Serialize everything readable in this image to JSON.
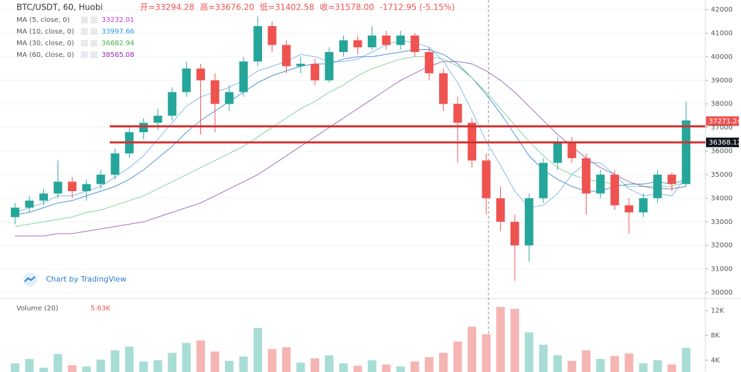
{
  "chart_data": {
    "type": "candlestick",
    "title": "BTC/USDT, 60, Huobi",
    "header_fields": [
      "开=33294.28",
      "高=33676.20",
      "低=31402.58",
      "收=31578.00",
      "-1712.95 (-5.15%)"
    ],
    "header_color": "#ef5350",
    "up_color": "#26a69a",
    "down_color": "#ef5350",
    "volume_up_color": "#a8ddd6",
    "volume_down_color": "#f5b5b3",
    "ohlc": [
      [
        33200,
        33800,
        32900,
        33600
      ],
      [
        33600,
        34100,
        33400,
        33900
      ],
      [
        33900,
        34400,
        33700,
        34200
      ],
      [
        34200,
        35600,
        34000,
        34700
      ],
      [
        34700,
        34900,
        34000,
        34300
      ],
      [
        34300,
        34800,
        33900,
        34600
      ],
      [
        34600,
        35200,
        34400,
        35000
      ],
      [
        35000,
        36100,
        34800,
        35900
      ],
      [
        35900,
        37000,
        35700,
        36800
      ],
      [
        36800,
        37400,
        36500,
        37200
      ],
      [
        37200,
        37800,
        36900,
        37500
      ],
      [
        37500,
        38700,
        37300,
        38500
      ],
      [
        38500,
        39800,
        38300,
        39500
      ],
      [
        39500,
        39700,
        36700,
        39000
      ],
      [
        39000,
        39300,
        36800,
        38000
      ],
      [
        38000,
        38800,
        37700,
        38500
      ],
      [
        38500,
        40000,
        38300,
        39800
      ],
      [
        39800,
        41700,
        39600,
        41300
      ],
      [
        41300,
        41500,
        40200,
        40500
      ],
      [
        40500,
        40700,
        39300,
        39600
      ],
      [
        39600,
        40000,
        39300,
        39700
      ],
      [
        39700,
        39900,
        38800,
        39000
      ],
      [
        39000,
        40400,
        38900,
        40200
      ],
      [
        40200,
        40900,
        40000,
        40700
      ],
      [
        40700,
        40900,
        40100,
        40400
      ],
      [
        40400,
        41300,
        40300,
        40900
      ],
      [
        40900,
        41100,
        40300,
        40500
      ],
      [
        40500,
        41100,
        40300,
        40900
      ],
      [
        40900,
        41000,
        40000,
        40200
      ],
      [
        40200,
        40400,
        39000,
        39300
      ],
      [
        39300,
        39500,
        37700,
        38000
      ],
      [
        38000,
        38300,
        35500,
        37200
      ],
      [
        37200,
        37400,
        35300,
        35600
      ],
      [
        35600,
        35900,
        33300,
        34000
      ],
      [
        34000,
        34500,
        32600,
        33000
      ],
      [
        33000,
        33300,
        30500,
        32000
      ],
      [
        32000,
        34200,
        31300,
        34000
      ],
      [
        34000,
        35700,
        33800,
        35500
      ],
      [
        35500,
        36600,
        35200,
        36400
      ],
      [
        36400,
        36600,
        35500,
        35700
      ],
      [
        35700,
        35900,
        33300,
        34200
      ],
      [
        34200,
        35200,
        34000,
        35000
      ],
      [
        35000,
        35200,
        33500,
        33700
      ],
      [
        33700,
        34000,
        32500,
        33400
      ],
      [
        33400,
        34200,
        33200,
        34000
      ],
      [
        34000,
        35200,
        33800,
        35000
      ],
      [
        35000,
        35100,
        34300,
        34600
      ],
      [
        34600,
        38100,
        34500,
        37300
      ]
    ],
    "series": [
      {
        "name": "MA (5, close, 0)",
        "legend_value": "33232.01",
        "color": "#c23bd4",
        "line_color": "#7fb8f0",
        "values": [
          33400,
          33600,
          33800,
          34100,
          34100,
          34300,
          34500,
          34900,
          35300,
          35800,
          36500,
          37200,
          37900,
          38300,
          38500,
          38700,
          39000,
          39400,
          39600,
          39800,
          40100,
          40000,
          39800,
          39800,
          39900,
          40200,
          40500,
          40700,
          40600,
          40400,
          39800,
          38900,
          37700,
          36400,
          35400,
          34300,
          33600,
          33700,
          34200,
          35000,
          35500,
          35500,
          35000,
          34400,
          34100,
          34200,
          34100,
          34900
        ]
      },
      {
        "name": "MA (10, close, 0)",
        "legend_value": "33997.66",
        "color": "#2196f3",
        "line_color": "#4a90d9",
        "values": [
          33300,
          33400,
          33600,
          33800,
          33900,
          34100,
          34300,
          34500,
          34800,
          35200,
          35700,
          36200,
          36800,
          37300,
          37700,
          38100,
          38500,
          38900,
          39200,
          39400,
          39600,
          39700,
          39700,
          39900,
          40000,
          40000,
          40100,
          40200,
          40300,
          40300,
          40100,
          39700,
          39100,
          38400,
          37600,
          36700,
          35800,
          35200,
          34800,
          34500,
          34300,
          34300,
          34500,
          34600,
          34600,
          34700,
          34600,
          34800
        ]
      },
      {
        "name": "MA (30, close, 0)",
        "legend_value": "36682.94",
        "color": "#43b04a",
        "line_color": "#7fd39a",
        "values": [
          32800,
          32900,
          33000,
          33100,
          33200,
          33400,
          33500,
          33700,
          33900,
          34100,
          34400,
          34700,
          35000,
          35300,
          35600,
          35900,
          36200,
          36600,
          37000,
          37400,
          37800,
          38100,
          38500,
          38800,
          39200,
          39500,
          39700,
          39900,
          40000,
          40000,
          39900,
          39600,
          39100,
          38500,
          37800,
          37100,
          36400,
          35800,
          35300,
          35000,
          34800,
          34700,
          34600,
          34500,
          34500,
          34500,
          34500,
          34700
        ]
      },
      {
        "name": "MA (60, close, 0)",
        "legend_value": "38565.08",
        "color": "#9c27b0",
        "line_color": "#9b6fb5",
        "values": [
          32400,
          32400,
          32400,
          32500,
          32500,
          32600,
          32700,
          32800,
          32900,
          33000,
          33200,
          33400,
          33600,
          33800,
          34100,
          34400,
          34700,
          35000,
          35400,
          35800,
          36200,
          36600,
          37000,
          37400,
          37800,
          38200,
          38600,
          39000,
          39300,
          39600,
          39800,
          39800,
          39700,
          39400,
          39000,
          38500,
          37900,
          37300,
          36700,
          36200,
          35700,
          35300,
          35000,
          34700,
          34500,
          34400,
          34400,
          34500
        ]
      }
    ],
    "ylim": [
      29768,
      42407
    ],
    "yticks": [
      30000,
      31000,
      32000,
      33000,
      34000,
      35000,
      36000,
      37000,
      38000,
      39000,
      40000,
      41000,
      42000
    ],
    "grid": true,
    "levels": [
      37050,
      36368.12
    ],
    "level_color": "#d32f2f",
    "price_labels": [
      {
        "value": 37271.24,
        "color": "#ef5350"
      },
      {
        "value": 36368.12,
        "color": "#131722"
      }
    ],
    "attribution": "Chart by TradingView",
    "volume_title": "Volume (20)",
    "volume_legend_value": "5.63K",
    "volume": [
      3500,
      4200,
      2800,
      5000,
      3200,
      3000,
      4100,
      5600,
      6200,
      3800,
      4000,
      5200,
      6800,
      7200,
      5400,
      3900,
      4600,
      9200,
      5800,
      6100,
      3600,
      4300,
      4800,
      3500,
      3100,
      4000,
      3300,
      3000,
      3800,
      4500,
      5200,
      7000,
      9400,
      8200,
      12600,
      12300,
      8500,
      6500,
      4800,
      3900,
      5600,
      4200,
      4700,
      5100,
      3500,
      4000,
      3300,
      6000
    ],
    "volume_ylim": [
      0,
      13700
    ],
    "volume_yticks": [
      {
        "value": 4000,
        "label": "4K"
      },
      {
        "value": 8000,
        "label": "8K"
      },
      {
        "value": 12000,
        "label": "12K"
      }
    ]
  }
}
